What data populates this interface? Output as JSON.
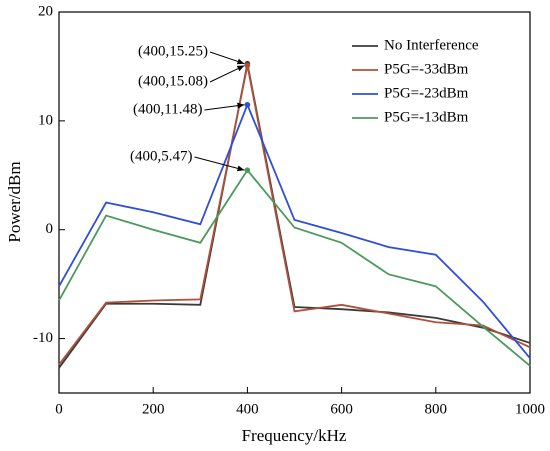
{
  "chart_data": {
    "type": "line",
    "xlabel": "Frequency/kHz",
    "ylabel": "Power/dBm",
    "x": [
      0,
      100,
      200,
      300,
      400,
      500,
      600,
      700,
      800,
      900,
      1000
    ],
    "series": [
      {
        "name": "No Interference",
        "color": "#3a3a3a",
        "values": [
          -12.7,
          -6.8,
          -6.8,
          -6.9,
          15.25,
          -7.1,
          -7.3,
          -7.6,
          -8.1,
          -9.0,
          -10.4
        ]
      },
      {
        "name": "P5G=-33dBm",
        "color": "#b0503a",
        "values": [
          -12.4,
          -6.7,
          -6.5,
          -6.4,
          15.08,
          -7.5,
          -6.9,
          -7.7,
          -8.5,
          -8.8,
          -10.8
        ]
      },
      {
        "name": "P5G=-23dBm",
        "color": "#2f4fd6",
        "values": [
          -5.2,
          2.5,
          1.6,
          0.5,
          11.48,
          0.9,
          -0.3,
          -1.6,
          -2.3,
          -6.6,
          -11.8
        ]
      },
      {
        "name": "P5G=-13dBm",
        "color": "#4c9a5c",
        "values": [
          -6.5,
          1.3,
          0.0,
          -1.2,
          5.47,
          0.2,
          -1.2,
          -4.1,
          -5.2,
          -8.9,
          -12.5
        ]
      }
    ],
    "annotations": [
      "(400,15.25)",
      "(400,15.08)",
      "(400,11.48)",
      "(400,5.47)"
    ],
    "xlim": [
      0,
      1000
    ],
    "xticks": [
      0,
      200,
      400,
      600,
      800,
      1000
    ],
    "ylim": [
      -15,
      20
    ],
    "yticks": [
      -10,
      0,
      10,
      20
    ],
    "legend": "upper right",
    "grid": false
  }
}
